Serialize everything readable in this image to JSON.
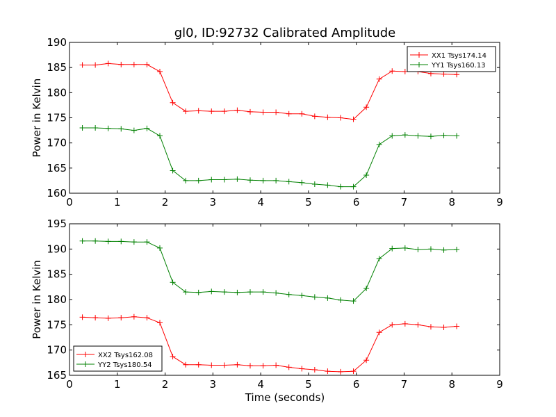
{
  "chart_data": {
    "title": "gl0, ID:92732 Calibrated Amplitude",
    "xlabel": "Time (seconds)",
    "subplots": [
      {
        "type": "line",
        "ylabel": "Power in Kelvin",
        "xlim": [
          0,
          9
        ],
        "ylim": [
          160,
          190
        ],
        "xticks": [
          "0",
          "1",
          "2",
          "3",
          "4",
          "5",
          "6",
          "7",
          "8",
          "9"
        ],
        "yticks": [
          "160",
          "165",
          "170",
          "175",
          "180",
          "185",
          "190"
        ],
        "legend_position": "top-right",
        "x": [
          0.27,
          0.54,
          0.81,
          1.08,
          1.35,
          1.62,
          1.89,
          2.16,
          2.43,
          2.7,
          2.97,
          3.24,
          3.51,
          3.78,
          4.05,
          4.32,
          4.59,
          4.86,
          5.13,
          5.4,
          5.67,
          5.94,
          6.21,
          6.48,
          6.75,
          7.02,
          7.29,
          7.56,
          7.83,
          8.1
        ],
        "series": [
          {
            "name": "XX1 Tsys174.14",
            "color": "#ff0000",
            "values": [
              185.5,
              185.5,
              185.8,
              185.6,
              185.6,
              185.6,
              184.2,
              178.0,
              176.3,
              176.4,
              176.3,
              176.3,
              176.5,
              176.2,
              176.1,
              176.1,
              175.8,
              175.8,
              175.3,
              175.1,
              175.0,
              174.7,
              177.1,
              182.7,
              184.3,
              184.2,
              184.2,
              183.8,
              183.7,
              183.6
            ]
          },
          {
            "name": "YY1 Tsys160.13",
            "color": "#008000",
            "values": [
              173.0,
              173.0,
              172.9,
              172.8,
              172.5,
              172.9,
              171.4,
              164.5,
              162.5,
              162.5,
              162.7,
              162.7,
              162.8,
              162.6,
              162.5,
              162.5,
              162.3,
              162.1,
              161.8,
              161.6,
              161.3,
              161.3,
              163.6,
              169.7,
              171.4,
              171.6,
              171.4,
              171.3,
              171.5,
              171.4
            ]
          }
        ]
      },
      {
        "type": "line",
        "ylabel": "Power in Kelvin",
        "xlabel": "Time (seconds)",
        "xlim": [
          0,
          9
        ],
        "ylim": [
          165,
          195
        ],
        "xticks": [
          "0",
          "1",
          "2",
          "3",
          "4",
          "5",
          "6",
          "7",
          "8",
          "9"
        ],
        "yticks": [
          "165",
          "170",
          "175",
          "180",
          "185",
          "190",
          "195"
        ],
        "legend_position": "bottom-left",
        "x": [
          0.27,
          0.54,
          0.81,
          1.08,
          1.35,
          1.62,
          1.89,
          2.16,
          2.43,
          2.7,
          2.97,
          3.24,
          3.51,
          3.78,
          4.05,
          4.32,
          4.59,
          4.86,
          5.13,
          5.4,
          5.67,
          5.94,
          6.21,
          6.48,
          6.75,
          7.02,
          7.29,
          7.56,
          7.83,
          8.1
        ],
        "series": [
          {
            "name": "XX2 Tsys162.08",
            "color": "#ff0000",
            "values": [
              176.5,
              176.4,
              176.3,
              176.4,
              176.6,
              176.4,
              175.4,
              168.7,
              167.1,
              167.1,
              167.0,
              167.0,
              167.1,
              166.9,
              166.9,
              167.0,
              166.6,
              166.3,
              166.1,
              165.8,
              165.7,
              165.8,
              168.0,
              173.5,
              175.0,
              175.2,
              175.0,
              174.6,
              174.5,
              174.7
            ]
          },
          {
            "name": "YY2 Tsys180.54",
            "color": "#008000",
            "values": [
              191.6,
              191.6,
              191.5,
              191.5,
              191.4,
              191.4,
              190.2,
              183.4,
              181.5,
              181.4,
              181.6,
              181.5,
              181.4,
              181.5,
              181.5,
              181.3,
              181.0,
              180.8,
              180.5,
              180.3,
              179.9,
              179.7,
              182.2,
              188.1,
              190.1,
              190.2,
              189.9,
              190.0,
              189.8,
              189.9
            ]
          }
        ]
      }
    ]
  }
}
